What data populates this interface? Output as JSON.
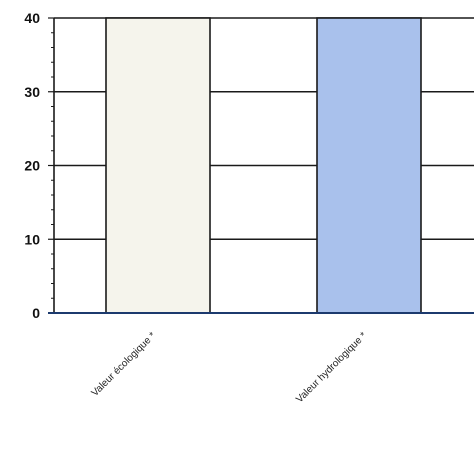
{
  "chart_data": {
    "type": "bar",
    "categories": [
      "Valeur écologique *",
      "Valeur hydrologique *"
    ],
    "values": [
      40,
      40
    ],
    "bar_colors": [
      "#f5f4ec",
      "#a9c1ec"
    ],
    "bar_edge_color": "#1a1a1a",
    "ylim": [
      0,
      40
    ],
    "yticks": [
      "0",
      "10",
      "20",
      "30",
      "40"
    ],
    "grid": true,
    "title": "",
    "xlabel": "",
    "ylabel": ""
  }
}
